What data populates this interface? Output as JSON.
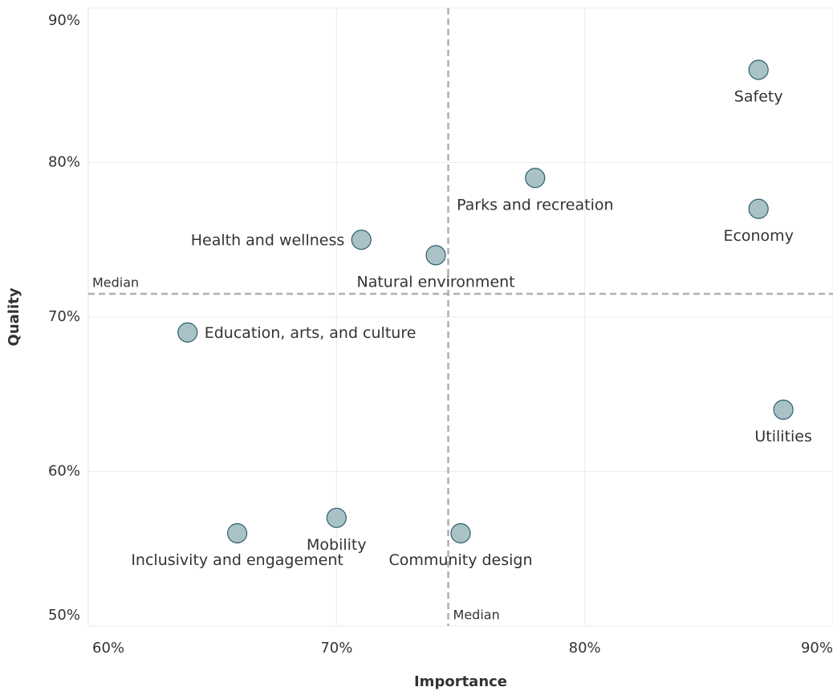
{
  "chart_data": {
    "type": "scatter",
    "x_label": "Importance",
    "y_label": "Quality",
    "points": [
      {
        "name": "Safety",
        "x": 87,
        "y": 86
      },
      {
        "name": "Parks and recreation",
        "x": 78,
        "y": 79
      },
      {
        "name": "Economy",
        "x": 87,
        "y": 77
      },
      {
        "name": "Health and wellness",
        "x": 71,
        "y": 75
      },
      {
        "name": "Natural environment",
        "x": 74,
        "y": 74
      },
      {
        "name": "Education, arts, and culture",
        "x": 64,
        "y": 69
      },
      {
        "name": "Utilities",
        "x": 88,
        "y": 64
      },
      {
        "name": "Mobility",
        "x": 70,
        "y": 57
      },
      {
        "name": "Inclusivity and engagement",
        "x": 66,
        "y": 56
      },
      {
        "name": "Community design",
        "x": 75,
        "y": 56
      }
    ],
    "color": "#a9c2c5",
    "edge_color": "#2e5f6e",
    "reference_lines": [
      {
        "axis": "x",
        "value": 74.5,
        "label": "Median"
      },
      {
        "axis": "y",
        "value": 71.5,
        "label": "Median"
      }
    ],
    "xlim": [
      60,
      90
    ],
    "xticks": [
      {
        "value": 60,
        "label": "60%"
      },
      {
        "value": 70,
        "label": "70%"
      },
      {
        "value": 80,
        "label": "80%"
      },
      {
        "value": 90,
        "label": "90%"
      }
    ],
    "ylim": [
      50,
      90
    ],
    "yticks": [
      {
        "value": 50,
        "label": "50%"
      },
      {
        "value": 60,
        "label": "60%"
      },
      {
        "value": 70,
        "label": "70%"
      },
      {
        "value": 80,
        "label": "80%"
      },
      {
        "value": 90,
        "label": "90%"
      }
    ],
    "grid": true
  }
}
